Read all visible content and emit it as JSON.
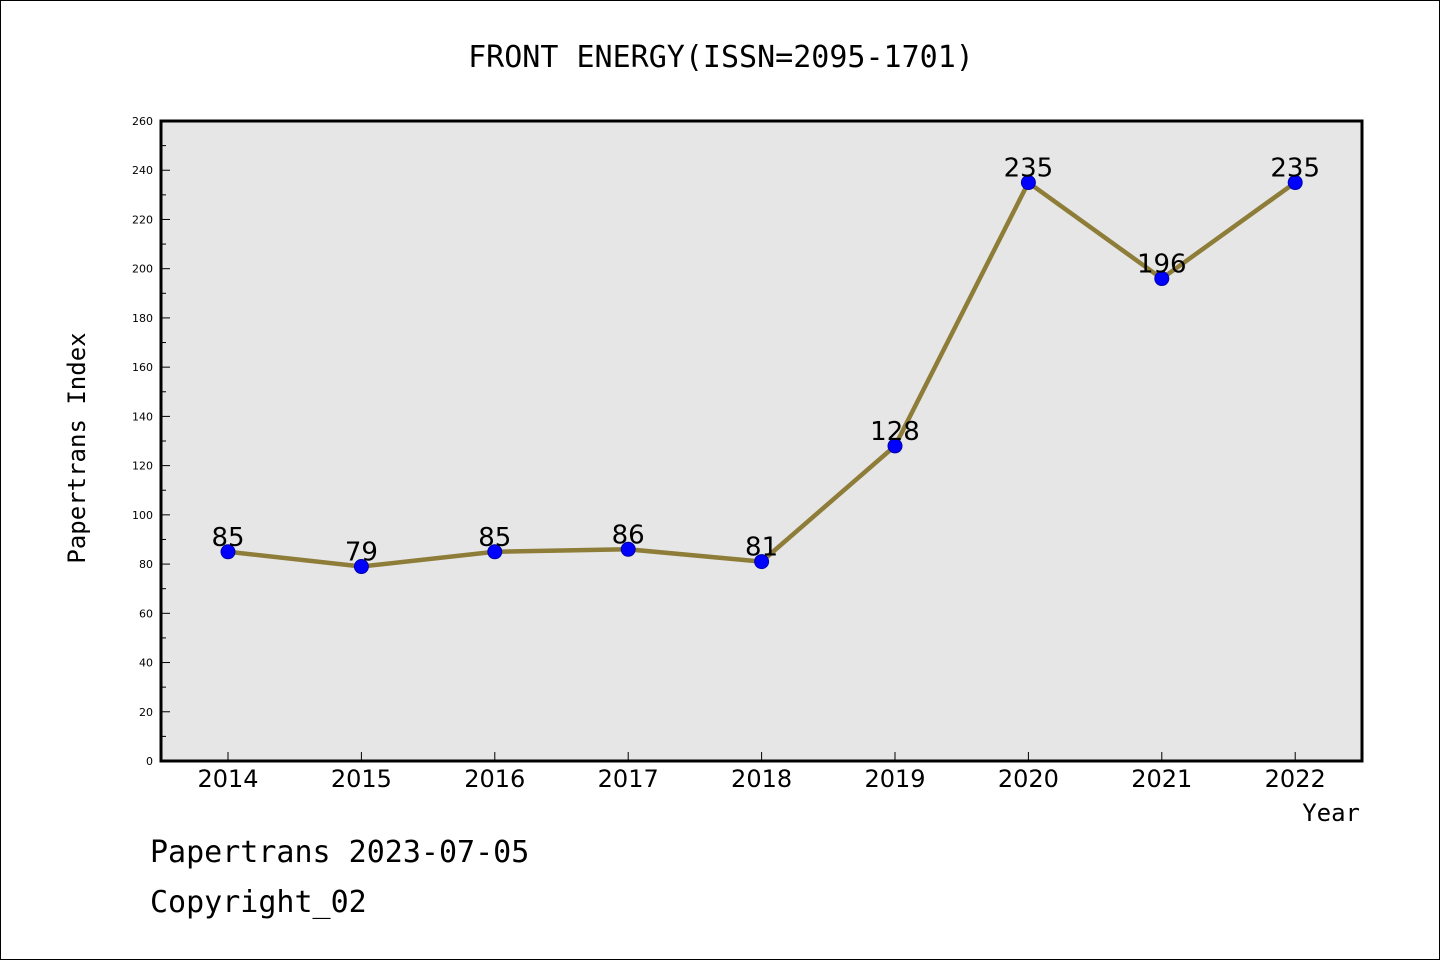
{
  "colors": {
    "plot_background": "#e6e6e6",
    "line": "#8e7d38",
    "marker": "#0000ff",
    "marker_edge": "#0000aa",
    "axis": "#000000"
  },
  "footer": {
    "line1": "Papertrans 2023-07-05",
    "line2": "Copyright_02"
  },
  "chart_data": {
    "type": "line",
    "title": "FRONT ENERGY(ISSN=2095-1701)",
    "xlabel": "Year",
    "ylabel": "Papertrans Index",
    "categories": [
      "2014",
      "2015",
      "2016",
      "2017",
      "2018",
      "2019",
      "2020",
      "2021",
      "2022"
    ],
    "series": [
      {
        "values": [
          85,
          79,
          85,
          86,
          81,
          128,
          235,
          196,
          235
        ]
      }
    ],
    "data_labels": [
      "85",
      "79",
      "85",
      "86",
      "81",
      "128",
      "235",
      "196",
      "235"
    ],
    "ylim": [
      0,
      260
    ],
    "yticks": [
      0,
      20,
      40,
      60,
      80,
      100,
      120,
      140,
      160,
      180,
      200,
      220,
      240,
      260
    ],
    "yticklabels": [
      "0",
      "20",
      "40",
      "60",
      "80",
      "100",
      "120",
      "140",
      "160",
      "180",
      "200",
      "220",
      "240",
      "260"
    ],
    "grid": false,
    "legend": "none"
  }
}
